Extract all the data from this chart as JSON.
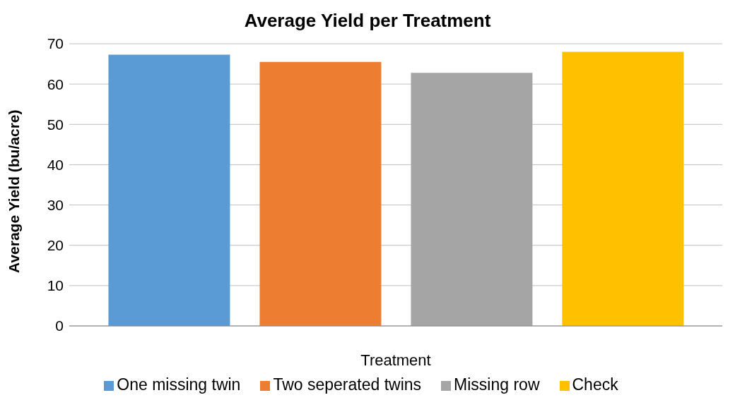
{
  "chart_data": {
    "type": "bar",
    "title": "Average Yield per Treatment",
    "xlabel": "Treatment",
    "ylabel": "Average Yield (bu/acre)",
    "categories": [
      null
    ],
    "series": [
      {
        "name": "One missing twin",
        "color": "#5b9bd5",
        "values": [
          67.3
        ]
      },
      {
        "name": "Two seperated twins",
        "color": "#ed7d31",
        "values": [
          65.5
        ]
      },
      {
        "name": "Missing row",
        "color": "#a5a5a5",
        "values": [
          62.8
        ]
      },
      {
        "name": "Check",
        "color": "#ffc000",
        "values": [
          68.0
        ]
      }
    ],
    "ylim": [
      0,
      70
    ],
    "yticks": [
      0,
      10,
      20,
      30,
      40,
      50,
      60,
      70
    ],
    "grid": "y",
    "legend": "bottom"
  }
}
